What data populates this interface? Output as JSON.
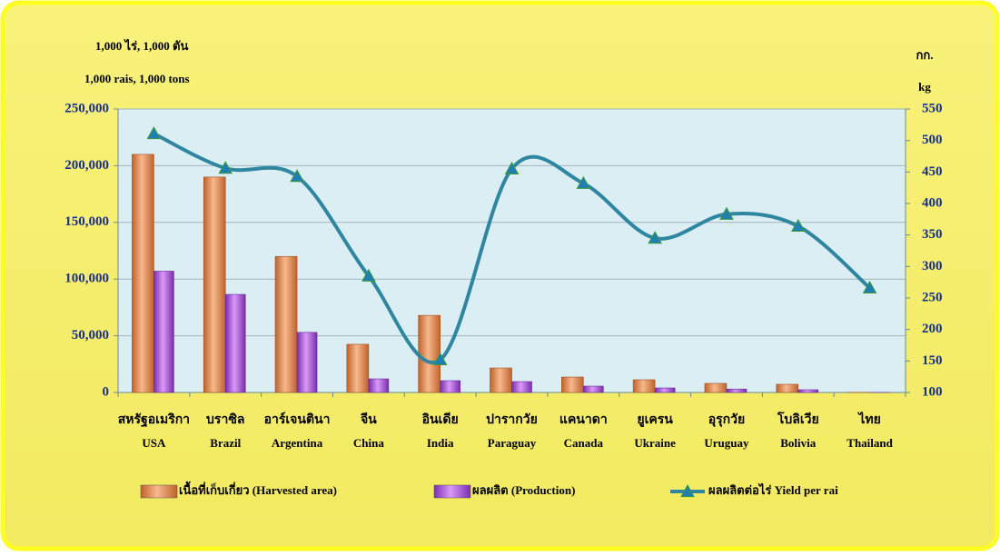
{
  "chart_data": {
    "type": "bar",
    "y_label_th": "1,000 ไร่,  1,000 ตัน",
    "y_label_en": "1,000 rais,  1,000 tons",
    "y2_label_th": "กก.",
    "y2_label_en": "kg",
    "categories": [
      "สหรัฐอเมริกา",
      "บราซิล",
      "อาร์เจนตินา",
      "จีน",
      "อินเดีย",
      "ปารากวัย",
      "แคนาดา",
      "ยูเครน",
      "อุรุกวัย",
      "โบลิเวีย",
      "ไทย"
    ],
    "categories_en": [
      "USA",
      "Brazil",
      "Argentina",
      "China",
      "India",
      "Paraguay",
      "Canada",
      "Ukraine",
      "Uruguay",
      "Bolivia",
      "Thailand"
    ],
    "series": [
      {
        "name": "เนื้อที่เก็บเกี่ยว  (Harvested area)",
        "color": "#e8915a",
        "values": [
          210000,
          190000,
          120000,
          42500,
          68000,
          21600,
          13600,
          11200,
          8000,
          7200,
          100
        ]
      },
      {
        "name": "ผลผลิต  (Production)",
        "color": "#b45ee0",
        "values": [
          107000,
          86500,
          53000,
          12000,
          10400,
          9600,
          5600,
          4000,
          3000,
          2400,
          50
        ]
      },
      {
        "name": "ผลผลิตต่อไร่ Yield per rai",
        "color": "#2e86a0",
        "marker_color": "#1f7fb5",
        "type": "line",
        "axis": "y2",
        "values": [
          511,
          456,
          443,
          285,
          152,
          455,
          432,
          345,
          383,
          364,
          266
        ]
      }
    ],
    "ylim": [
      0,
      250000
    ],
    "yticks": [
      {
        "value": 0,
        "label": "0"
      },
      {
        "value": 50000,
        "label": "50,000"
      },
      {
        "value": 100000,
        "label": "100,000"
      },
      {
        "value": 150000,
        "label": "150,000"
      },
      {
        "value": 200000,
        "label": "200,000"
      },
      {
        "value": 250000,
        "label": "250,000"
      }
    ],
    "y2lim": [
      100,
      550
    ],
    "y2ticks": [
      100,
      150,
      200,
      250,
      300,
      350,
      400,
      450,
      500,
      550
    ],
    "grid": true
  }
}
